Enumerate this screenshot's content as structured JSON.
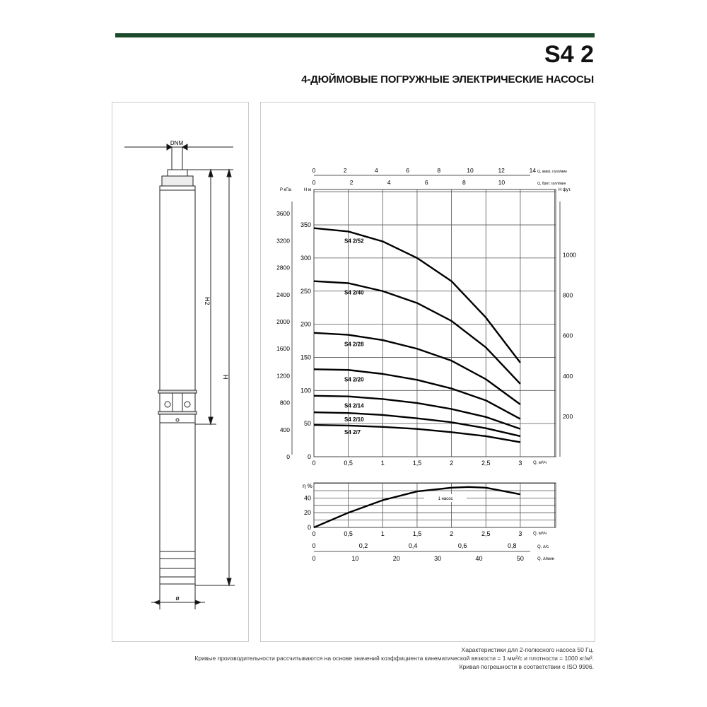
{
  "header": {
    "model": "S4 2",
    "subtitle": "4-ДЮЙМОВЫЕ ПОГРУЖНЫЕ ЭЛЕКТРИЧЕСКИЕ НАСОСЫ",
    "accent": "#1d4a2a"
  },
  "drawing": {
    "dnm": "DNM",
    "h2": "H2",
    "h": "H",
    "diameter": "ø"
  },
  "footer": {
    "lines": [
      "Характеристики для 2-полюсного насоса 50 Гц.",
      "Кривые производительности рассчитываются на основе значений коэффициента кинематической вязкости = 1 мм²/с и плотности = 1000 кг/м³.",
      "Кривая погрешности в соответствии с ISO 9906."
    ]
  },
  "chart_data": [
    {
      "type": "line",
      "title": "",
      "xlabel": "Q, м³/ч",
      "ylabel": "H м",
      "xlim": [
        0,
        3.5
      ],
      "ylim": [
        0,
        400
      ],
      "x_ticks": [
        "0",
        "0,5",
        "1",
        "1,5",
        "2",
        "2,5",
        "3"
      ],
      "y_ticks": [
        "0",
        "50",
        "100",
        "150",
        "200",
        "250",
        "300",
        "350"
      ],
      "secondary_axes": {
        "left_kpa": {
          "label": "P кПа",
          "ticks": [
            "0",
            "400",
            "800",
            "1200",
            "1600",
            "2000",
            "2400",
            "2800",
            "3200",
            "3600"
          ]
        },
        "right_ft": {
          "label": "H фут.",
          "ticks": [
            "200",
            "400",
            "600",
            "800",
            "1000"
          ]
        },
        "top_us_gpm": {
          "label": "Q, амер. галл/мин",
          "ticks": [
            "0",
            "2",
            "4",
            "6",
            "8",
            "10",
            "12",
            "14"
          ]
        },
        "top_imp_gpm": {
          "label": "Q, брит. галл/мин",
          "ticks": [
            "0",
            "2",
            "4",
            "6",
            "8",
            "10"
          ]
        }
      },
      "grid": true,
      "x": [
        0,
        0.5,
        1,
        1.5,
        2,
        2.5,
        3
      ],
      "series": [
        {
          "name": "S4 2/52",
          "values": [
            345,
            340,
            325,
            300,
            265,
            210,
            142
          ]
        },
        {
          "name": "S4 2/40",
          "values": [
            265,
            262,
            250,
            232,
            205,
            165,
            110
          ]
        },
        {
          "name": "S4 2/28",
          "values": [
            187,
            184,
            176,
            163,
            145,
            117,
            79
          ]
        },
        {
          "name": "S4 2/20",
          "values": [
            132,
            131,
            125,
            116,
            103,
            85,
            57
          ]
        },
        {
          "name": "S4 2/14",
          "values": [
            92,
            91,
            87,
            81,
            72,
            60,
            42
          ]
        },
        {
          "name": "S4 2/10",
          "values": [
            67,
            66,
            63,
            58,
            52,
            43,
            31
          ]
        },
        {
          "name": "S4 2/7",
          "values": [
            48,
            47,
            45,
            42,
            37,
            31,
            22
          ]
        }
      ]
    },
    {
      "type": "line",
      "title": "",
      "xlabel": "Q, м³/ч",
      "ylabel": "η %",
      "xlim": [
        0,
        3.5
      ],
      "ylim": [
        0,
        60
      ],
      "x_ticks": [
        "0",
        "0,5",
        "1",
        "1,5",
        "2",
        "2,5",
        "3"
      ],
      "y_ticks": [
        "0",
        "20",
        "40"
      ],
      "secondary_axes": {
        "bottom_ls": {
          "label": "Q, л/с",
          "ticks": [
            "0",
            "0,2",
            "0,4",
            "0,6",
            "0,8"
          ]
        },
        "bottom_lmin": {
          "label": "Q, л/мин",
          "ticks": [
            "0",
            "10",
            "20",
            "30",
            "40",
            "50"
          ]
        }
      },
      "annotation": "1 насос",
      "grid": true,
      "x": [
        0,
        0.5,
        1,
        1.5,
        2,
        2.25,
        2.5,
        3
      ],
      "series": [
        {
          "values": [
            0,
            20,
            37,
            49,
            54,
            55,
            54,
            45
          ]
        }
      ]
    }
  ]
}
